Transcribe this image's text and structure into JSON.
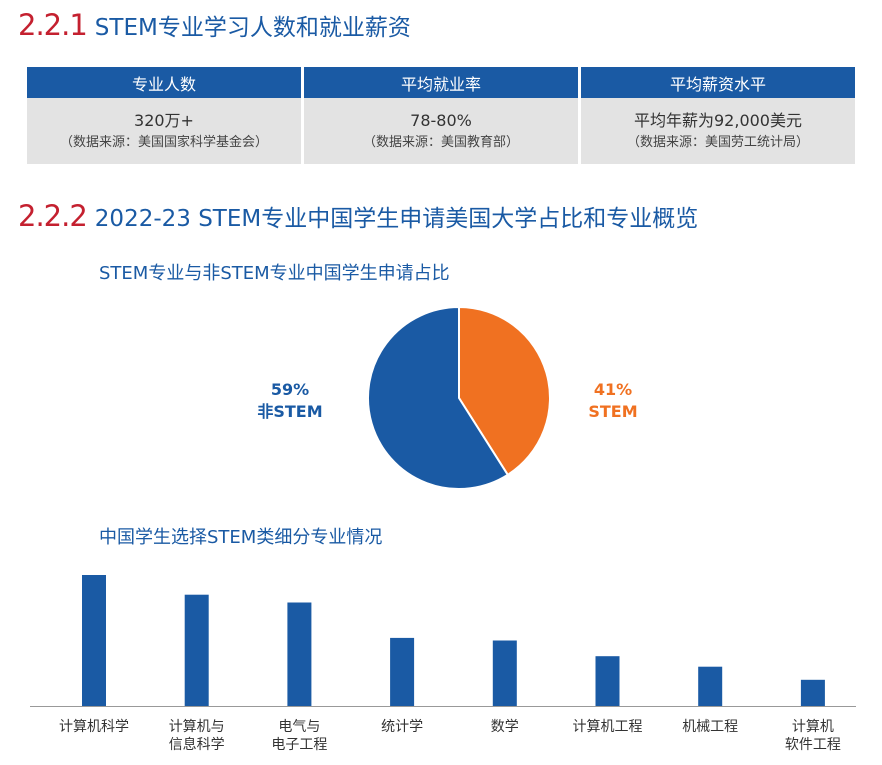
{
  "section1": {
    "number": "2.2.1",
    "title": "STEM专业学习人数和就业薪资"
  },
  "table": {
    "headers": [
      "专业人数",
      "平均就业率",
      "平均薪资水平"
    ],
    "cells": [
      {
        "main": "320万+",
        "source": "（数据来源：美国国家科学基金会）"
      },
      {
        "main": "78-80%",
        "source": "（数据来源：美国教育部）"
      },
      {
        "main": "平均年薪为92,000美元",
        "source": "（数据来源：美国劳工统计局）"
      }
    ]
  },
  "section2": {
    "number": "2.2.2",
    "title": "2022-23 STEM专业中国学生申请美国大学占比和专业概览"
  },
  "pie": {
    "title": "STEM专业与非STEM专业中国学生申请占比",
    "non_stem": {
      "percent": "59%",
      "label": "非STEM"
    },
    "stem": {
      "percent": "41%",
      "label": "STEM"
    }
  },
  "bars": {
    "title": "中国学生选择STEM类细分专业情况"
  },
  "colors": {
    "brand_blue": "#1a5aa4",
    "accent_orange": "#f07121",
    "heading_red": "#c4202f",
    "cell_gray": "#e3e3e3"
  },
  "chart_data": [
    {
      "type": "pie",
      "title": "STEM专业与非STEM专业中国学生申请占比",
      "labels": [
        "非STEM",
        "STEM"
      ],
      "values": [
        59,
        41
      ],
      "colors": [
        "#1a5aa4",
        "#f07121"
      ]
    },
    {
      "type": "bar",
      "title": "中国学生选择STEM类细分专业情况",
      "categories": [
        [
          "计算机科学"
        ],
        [
          "计算机与",
          "信息科学"
        ],
        [
          "电气与",
          "电子工程"
        ],
        [
          "统计学"
        ],
        [
          "数学"
        ],
        [
          "计算机工程"
        ],
        [
          "机械工程"
        ],
        [
          "计算机",
          "软件工程"
        ]
      ],
      "values": [
        100,
        85,
        79,
        52,
        50,
        38,
        30,
        20
      ],
      "ylim": [
        0,
        100
      ],
      "grid": false,
      "color": "#1a5aa4"
    }
  ]
}
